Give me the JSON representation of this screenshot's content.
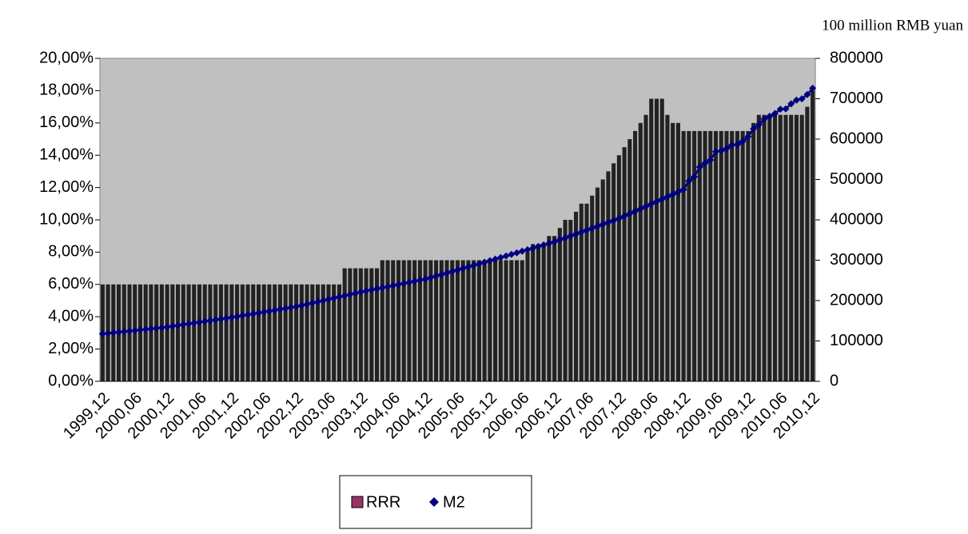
{
  "chart_data": {
    "type": "bar_line",
    "y2_label": "100 million RMB yuan",
    "categories": [
      "1999,12",
      null,
      null,
      null,
      null,
      null,
      "2000,06",
      null,
      null,
      null,
      null,
      null,
      "2000,12",
      null,
      null,
      null,
      null,
      null,
      "2001,06",
      null,
      null,
      null,
      null,
      null,
      "2001,12",
      null,
      null,
      null,
      null,
      null,
      "2002,06",
      null,
      null,
      null,
      null,
      null,
      "2002,12",
      null,
      null,
      null,
      null,
      null,
      "2003,06",
      null,
      null,
      null,
      null,
      null,
      "2003,12",
      null,
      null,
      null,
      null,
      null,
      "2004,06",
      null,
      null,
      null,
      null,
      null,
      "2004,12",
      null,
      null,
      null,
      null,
      null,
      "2005,06",
      null,
      null,
      null,
      null,
      null,
      "2005,12",
      null,
      null,
      null,
      null,
      null,
      "2006,06",
      null,
      null,
      null,
      null,
      null,
      "2006,12",
      null,
      null,
      null,
      null,
      null,
      "2007,06",
      null,
      null,
      null,
      null,
      null,
      "2007,12",
      null,
      null,
      null,
      null,
      null,
      "2008,06",
      null,
      null,
      null,
      null,
      null,
      "2008,12",
      null,
      null,
      null,
      null,
      null,
      "2009,06",
      null,
      null,
      null,
      null,
      null,
      "2009,12",
      null,
      null,
      null,
      null,
      null,
      "2010,06",
      null,
      null,
      null,
      null,
      null,
      "2010,12"
    ],
    "series": [
      {
        "name": "RRR",
        "color": "#222222",
        "values": [
          6,
          6,
          6,
          6,
          6,
          6,
          6,
          6,
          6,
          6,
          6,
          6,
          6,
          6,
          6,
          6,
          6,
          6,
          6,
          6,
          6,
          6,
          6,
          6,
          6,
          6,
          6,
          6,
          6,
          6,
          6,
          6,
          6,
          6,
          6,
          6,
          6,
          6,
          6,
          6,
          6,
          6,
          6,
          6,
          6,
          7,
          7,
          7,
          7,
          7,
          7,
          7,
          7.5,
          7.5,
          7.5,
          7.5,
          7.5,
          7.5,
          7.5,
          7.5,
          7.5,
          7.5,
          7.5,
          7.5,
          7.5,
          7.5,
          7.5,
          7.5,
          7.5,
          7.5,
          7.5,
          7.5,
          7.5,
          7.5,
          7.5,
          7.5,
          7.5,
          7.5,
          7.5,
          8,
          8.5,
          8.5,
          8.5,
          9,
          9,
          9.5,
          10,
          10,
          10.5,
          11,
          11,
          11.5,
          12,
          12.5,
          13,
          13.5,
          14,
          14.5,
          15,
          15.5,
          16,
          16.5,
          17.5,
          17.5,
          17.5,
          16.5,
          16,
          16,
          15.5,
          15.5,
          15.5,
          15.5,
          15.5,
          15.5,
          15.5,
          15.5,
          15.5,
          15.5,
          15.5,
          15.5,
          15.5,
          16,
          16.5,
          16.5,
          16.5,
          16.5,
          16.5,
          16.5,
          16.5,
          16.5,
          16.5,
          17,
          18
        ]
      },
      {
        "name": "M2",
        "color": "#000080",
        "axis": "y2",
        "values": [
          117600,
          119000,
          120400,
          121800,
          123200,
          124600,
          126000,
          127400,
          128800,
          130200,
          131600,
          133000,
          134600,
          136600,
          138600,
          140500,
          142500,
          144500,
          146500,
          148400,
          150400,
          152400,
          154400,
          156300,
          158300,
          160500,
          162800,
          165000,
          167200,
          169400,
          171700,
          173900,
          176100,
          178400,
          180600,
          182800,
          185000,
          188000,
          191000,
          194100,
          197100,
          200100,
          203100,
          206100,
          209100,
          212200,
          215200,
          218200,
          221200,
          223900,
          226500,
          229200,
          231900,
          234500,
          237200,
          239900,
          242500,
          245200,
          247900,
          250500,
          253200,
          257000,
          260800,
          264600,
          268400,
          272200,
          276000,
          279800,
          283600,
          287400,
          291200,
          295000,
          298800,
          302700,
          306600,
          310500,
          314400,
          318300,
          322200,
          326100,
          330000,
          333900,
          337800,
          341700,
          345600,
          350400,
          355200,
          360100,
          364900,
          369700,
          374500,
          379300,
          384100,
          389000,
          393800,
          398600,
          403400,
          409400,
          415400,
          421400,
          427300,
          433300,
          439300,
          445300,
          451200,
          457200,
          463200,
          469200,
          475200,
          496000,
          506700,
          530600,
          540500,
          548300,
          568900,
          571400,
          576700,
          585400,
          586600,
          594600,
          606200,
          625600,
          636100,
          649900,
          656600,
          663400,
          673900,
          674800,
          687500,
          696500,
          699800,
          710300,
          725900
        ]
      }
    ],
    "ylim": [
      0,
      20
    ],
    "yticks": [
      {
        "value": 0,
        "label": "0,00%"
      },
      {
        "value": 2,
        "label": "2,00%"
      },
      {
        "value": 4,
        "label": "4,00%"
      },
      {
        "value": 6,
        "label": "6,00%"
      },
      {
        "value": 8,
        "label": "8,00%"
      },
      {
        "value": 10,
        "label": "10,00%"
      },
      {
        "value": 12,
        "label": "12,00%"
      },
      {
        "value": 14,
        "label": "14,00%"
      },
      {
        "value": 16,
        "label": "16,00%"
      },
      {
        "value": 18,
        "label": "18,00%"
      },
      {
        "value": 20,
        "label": "20,00%"
      }
    ],
    "y2lim": [
      0,
      800000
    ],
    "y2ticks": [
      0,
      100000,
      200000,
      300000,
      400000,
      500000,
      600000,
      700000,
      800000
    ],
    "plot_background": "#c0c0c0",
    "legend": "bottom"
  }
}
